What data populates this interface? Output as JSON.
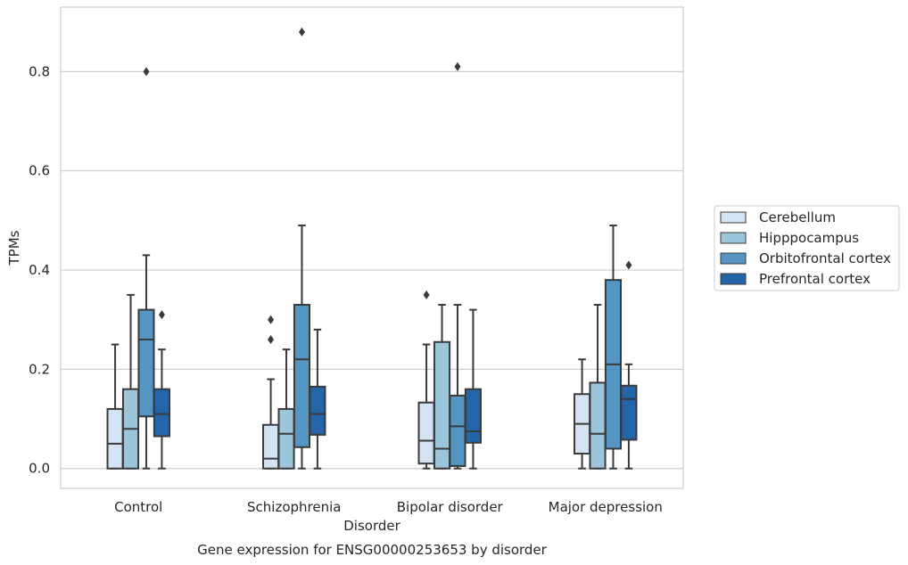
{
  "chart_data": {
    "type": "boxplot",
    "caption": "Gene expression for ENSG00000253653 by disorder",
    "xlabel": "Disorder",
    "ylabel": "TPMs",
    "ylim": [
      -0.04,
      0.93
    ],
    "yticks": [
      0.0,
      0.2,
      0.4,
      0.6,
      0.8
    ],
    "ytick_labels": [
      "0.0",
      "0.2",
      "0.4",
      "0.6",
      "0.8"
    ],
    "grid": true,
    "legend_position": "right",
    "categories": [
      "Control",
      "Schizophrenia",
      "Bipolar disorder",
      "Major depression"
    ],
    "series": [
      {
        "name": "Cerebellum",
        "color": "#d3e3f3",
        "boxes": [
          {
            "whislo": 0.0,
            "q1": 0.0,
            "med": 0.05,
            "q3": 0.12,
            "whishi": 0.25,
            "fliers": []
          },
          {
            "whislo": 0.0,
            "q1": 0.0,
            "med": 0.02,
            "q3": 0.088,
            "whishi": 0.18,
            "fliers": [
              0.26,
              0.3
            ]
          },
          {
            "whislo": 0.0,
            "q1": 0.01,
            "med": 0.056,
            "q3": 0.133,
            "whishi": 0.25,
            "fliers": [
              0.35
            ]
          },
          {
            "whislo": 0.0,
            "q1": 0.03,
            "med": 0.09,
            "q3": 0.15,
            "whishi": 0.22,
            "fliers": []
          }
        ]
      },
      {
        "name": "Hipppocampus",
        "color": "#9ac5db",
        "boxes": [
          {
            "whislo": 0.0,
            "q1": 0.0,
            "med": 0.08,
            "q3": 0.16,
            "whishi": 0.35,
            "fliers": []
          },
          {
            "whislo": 0.0,
            "q1": 0.0,
            "med": 0.07,
            "q3": 0.12,
            "whishi": 0.24,
            "fliers": []
          },
          {
            "whislo": 0.0,
            "q1": 0.0,
            "med": 0.04,
            "q3": 0.255,
            "whishi": 0.33,
            "fliers": []
          },
          {
            "whislo": 0.0,
            "q1": 0.0,
            "med": 0.07,
            "q3": 0.173,
            "whishi": 0.33,
            "fliers": []
          }
        ]
      },
      {
        "name": "Orbitofrontal cortex",
        "color": "#5495c3",
        "boxes": [
          {
            "whislo": 0.0,
            "q1": 0.105,
            "med": 0.26,
            "q3": 0.32,
            "whishi": 0.43,
            "fliers": [
              0.8
            ]
          },
          {
            "whislo": 0.0,
            "q1": 0.043,
            "med": 0.22,
            "q3": 0.33,
            "whishi": 0.49,
            "fliers": [
              0.88
            ]
          },
          {
            "whislo": 0.0,
            "q1": 0.005,
            "med": 0.085,
            "q3": 0.147,
            "whishi": 0.33,
            "fliers": [
              0.81
            ]
          },
          {
            "whislo": 0.0,
            "q1": 0.04,
            "med": 0.21,
            "q3": 0.38,
            "whishi": 0.49,
            "fliers": []
          }
        ]
      },
      {
        "name": "Prefrontal cortex",
        "color": "#2464a8",
        "boxes": [
          {
            "whislo": 0.0,
            "q1": 0.065,
            "med": 0.11,
            "q3": 0.16,
            "whishi": 0.24,
            "fliers": [
              0.31
            ]
          },
          {
            "whislo": 0.0,
            "q1": 0.068,
            "med": 0.11,
            "q3": 0.165,
            "whishi": 0.28,
            "fliers": []
          },
          {
            "whislo": 0.0,
            "q1": 0.052,
            "med": 0.075,
            "q3": 0.16,
            "whishi": 0.32,
            "fliers": []
          },
          {
            "whislo": 0.0,
            "q1": 0.058,
            "med": 0.14,
            "q3": 0.167,
            "whishi": 0.21,
            "fliers": [
              0.41
            ]
          }
        ]
      }
    ]
  }
}
